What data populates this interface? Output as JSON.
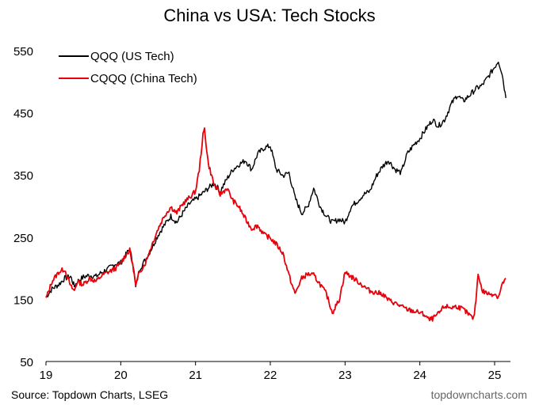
{
  "chart_data": {
    "type": "line",
    "title": "China vs USA: Tech Stocks",
    "xlabel": "",
    "ylabel": "",
    "x_ticks": [
      "19",
      "20",
      "21",
      "22",
      "23",
      "24",
      "25"
    ],
    "x_tick_values": [
      2019,
      2020,
      2021,
      2022,
      2023,
      2024,
      2025
    ],
    "y_ticks": [
      "550",
      "450",
      "350",
      "250",
      "150",
      "50"
    ],
    "y_tick_values": [
      550,
      450,
      350,
      250,
      150,
      50
    ],
    "xlim": [
      2019,
      2025.2
    ],
    "ylim": [
      50,
      560
    ],
    "grid": false,
    "legend_position": "top-left",
    "series": [
      {
        "name": "QQQ (US Tech)",
        "color": "#000000",
        "x": [
          2019.0,
          2019.08,
          2019.17,
          2019.25,
          2019.33,
          2019.38,
          2019.42,
          2019.5,
          2019.58,
          2019.67,
          2019.75,
          2019.83,
          2019.92,
          2020.0,
          2020.08,
          2020.12,
          2020.17,
          2020.2,
          2020.25,
          2020.33,
          2020.42,
          2020.5,
          2020.58,
          2020.67,
          2020.75,
          2020.83,
          2020.92,
          2021.0,
          2021.08,
          2021.17,
          2021.25,
          2021.33,
          2021.42,
          2021.5,
          2021.58,
          2021.67,
          2021.75,
          2021.83,
          2021.92,
          2022.0,
          2022.08,
          2022.17,
          2022.25,
          2022.33,
          2022.42,
          2022.5,
          2022.58,
          2022.67,
          2022.75,
          2022.83,
          2022.92,
          2023.0,
          2023.08,
          2023.17,
          2023.25,
          2023.33,
          2023.42,
          2023.5,
          2023.58,
          2023.67,
          2023.75,
          2023.83,
          2023.92,
          2024.0,
          2024.08,
          2024.17,
          2024.25,
          2024.33,
          2024.42,
          2024.5,
          2024.58,
          2024.67,
          2024.75,
          2024.83,
          2024.92,
          2025.0,
          2025.05,
          2025.1,
          2025.15
        ],
        "values": [
          155,
          168,
          175,
          185,
          188,
          172,
          180,
          187,
          190,
          188,
          195,
          200,
          208,
          210,
          225,
          232,
          205,
          170,
          200,
          215,
          235,
          255,
          270,
          285,
          275,
          290,
          305,
          312,
          320,
          330,
          338,
          325,
          345,
          360,
          368,
          375,
          360,
          385,
          395,
          398,
          360,
          350,
          355,
          315,
          290,
          300,
          330,
          300,
          285,
          275,
          280,
          275,
          300,
          310,
          320,
          325,
          350,
          365,
          375,
          360,
          355,
          385,
          400,
          410,
          425,
          440,
          430,
          440,
          465,
          480,
          470,
          480,
          490,
          495,
          510,
          525,
          535,
          515,
          475
        ]
      },
      {
        "name": "CQQQ (China Tech)",
        "color": "#e8000b",
        "x": [
          2019.0,
          2019.08,
          2019.17,
          2019.25,
          2019.33,
          2019.38,
          2019.42,
          2019.5,
          2019.58,
          2019.67,
          2019.75,
          2019.83,
          2019.92,
          2020.0,
          2020.08,
          2020.12,
          2020.17,
          2020.2,
          2020.25,
          2020.33,
          2020.42,
          2020.5,
          2020.58,
          2020.67,
          2020.75,
          2020.83,
          2020.92,
          2021.0,
          2021.05,
          2021.1,
          2021.12,
          2021.17,
          2021.25,
          2021.33,
          2021.42,
          2021.5,
          2021.58,
          2021.67,
          2021.75,
          2021.83,
          2021.92,
          2022.0,
          2022.08,
          2022.17,
          2022.25,
          2022.33,
          2022.42,
          2022.5,
          2022.58,
          2022.67,
          2022.75,
          2022.83,
          2022.92,
          2023.0,
          2023.08,
          2023.17,
          2023.25,
          2023.33,
          2023.42,
          2023.5,
          2023.58,
          2023.67,
          2023.75,
          2023.83,
          2023.92,
          2024.0,
          2024.08,
          2024.12,
          2024.17,
          2024.25,
          2024.33,
          2024.42,
          2024.5,
          2024.58,
          2024.67,
          2024.72,
          2024.75,
          2024.78,
          2024.83,
          2024.92,
          2025.0,
          2025.05,
          2025.1,
          2025.15
        ],
        "values": [
          152,
          180,
          195,
          200,
          172,
          165,
          180,
          175,
          185,
          180,
          190,
          195,
          200,
          210,
          225,
          230,
          200,
          172,
          195,
          210,
          240,
          265,
          285,
          300,
          290,
          305,
          315,
          325,
          360,
          415,
          425,
          370,
          335,
          320,
          330,
          310,
          300,
          280,
          265,
          270,
          255,
          250,
          240,
          225,
          190,
          160,
          185,
          192,
          190,
          175,
          160,
          130,
          150,
          195,
          188,
          180,
          172,
          165,
          162,
          160,
          150,
          145,
          140,
          135,
          132,
          130,
          125,
          118,
          120,
          128,
          140,
          138,
          140,
          135,
          125,
          120,
          150,
          195,
          165,
          160,
          160,
          155,
          175,
          185
        ]
      }
    ]
  },
  "source": "Source: Topdown Charts, LSEG",
  "watermark": "topdowncharts.com"
}
